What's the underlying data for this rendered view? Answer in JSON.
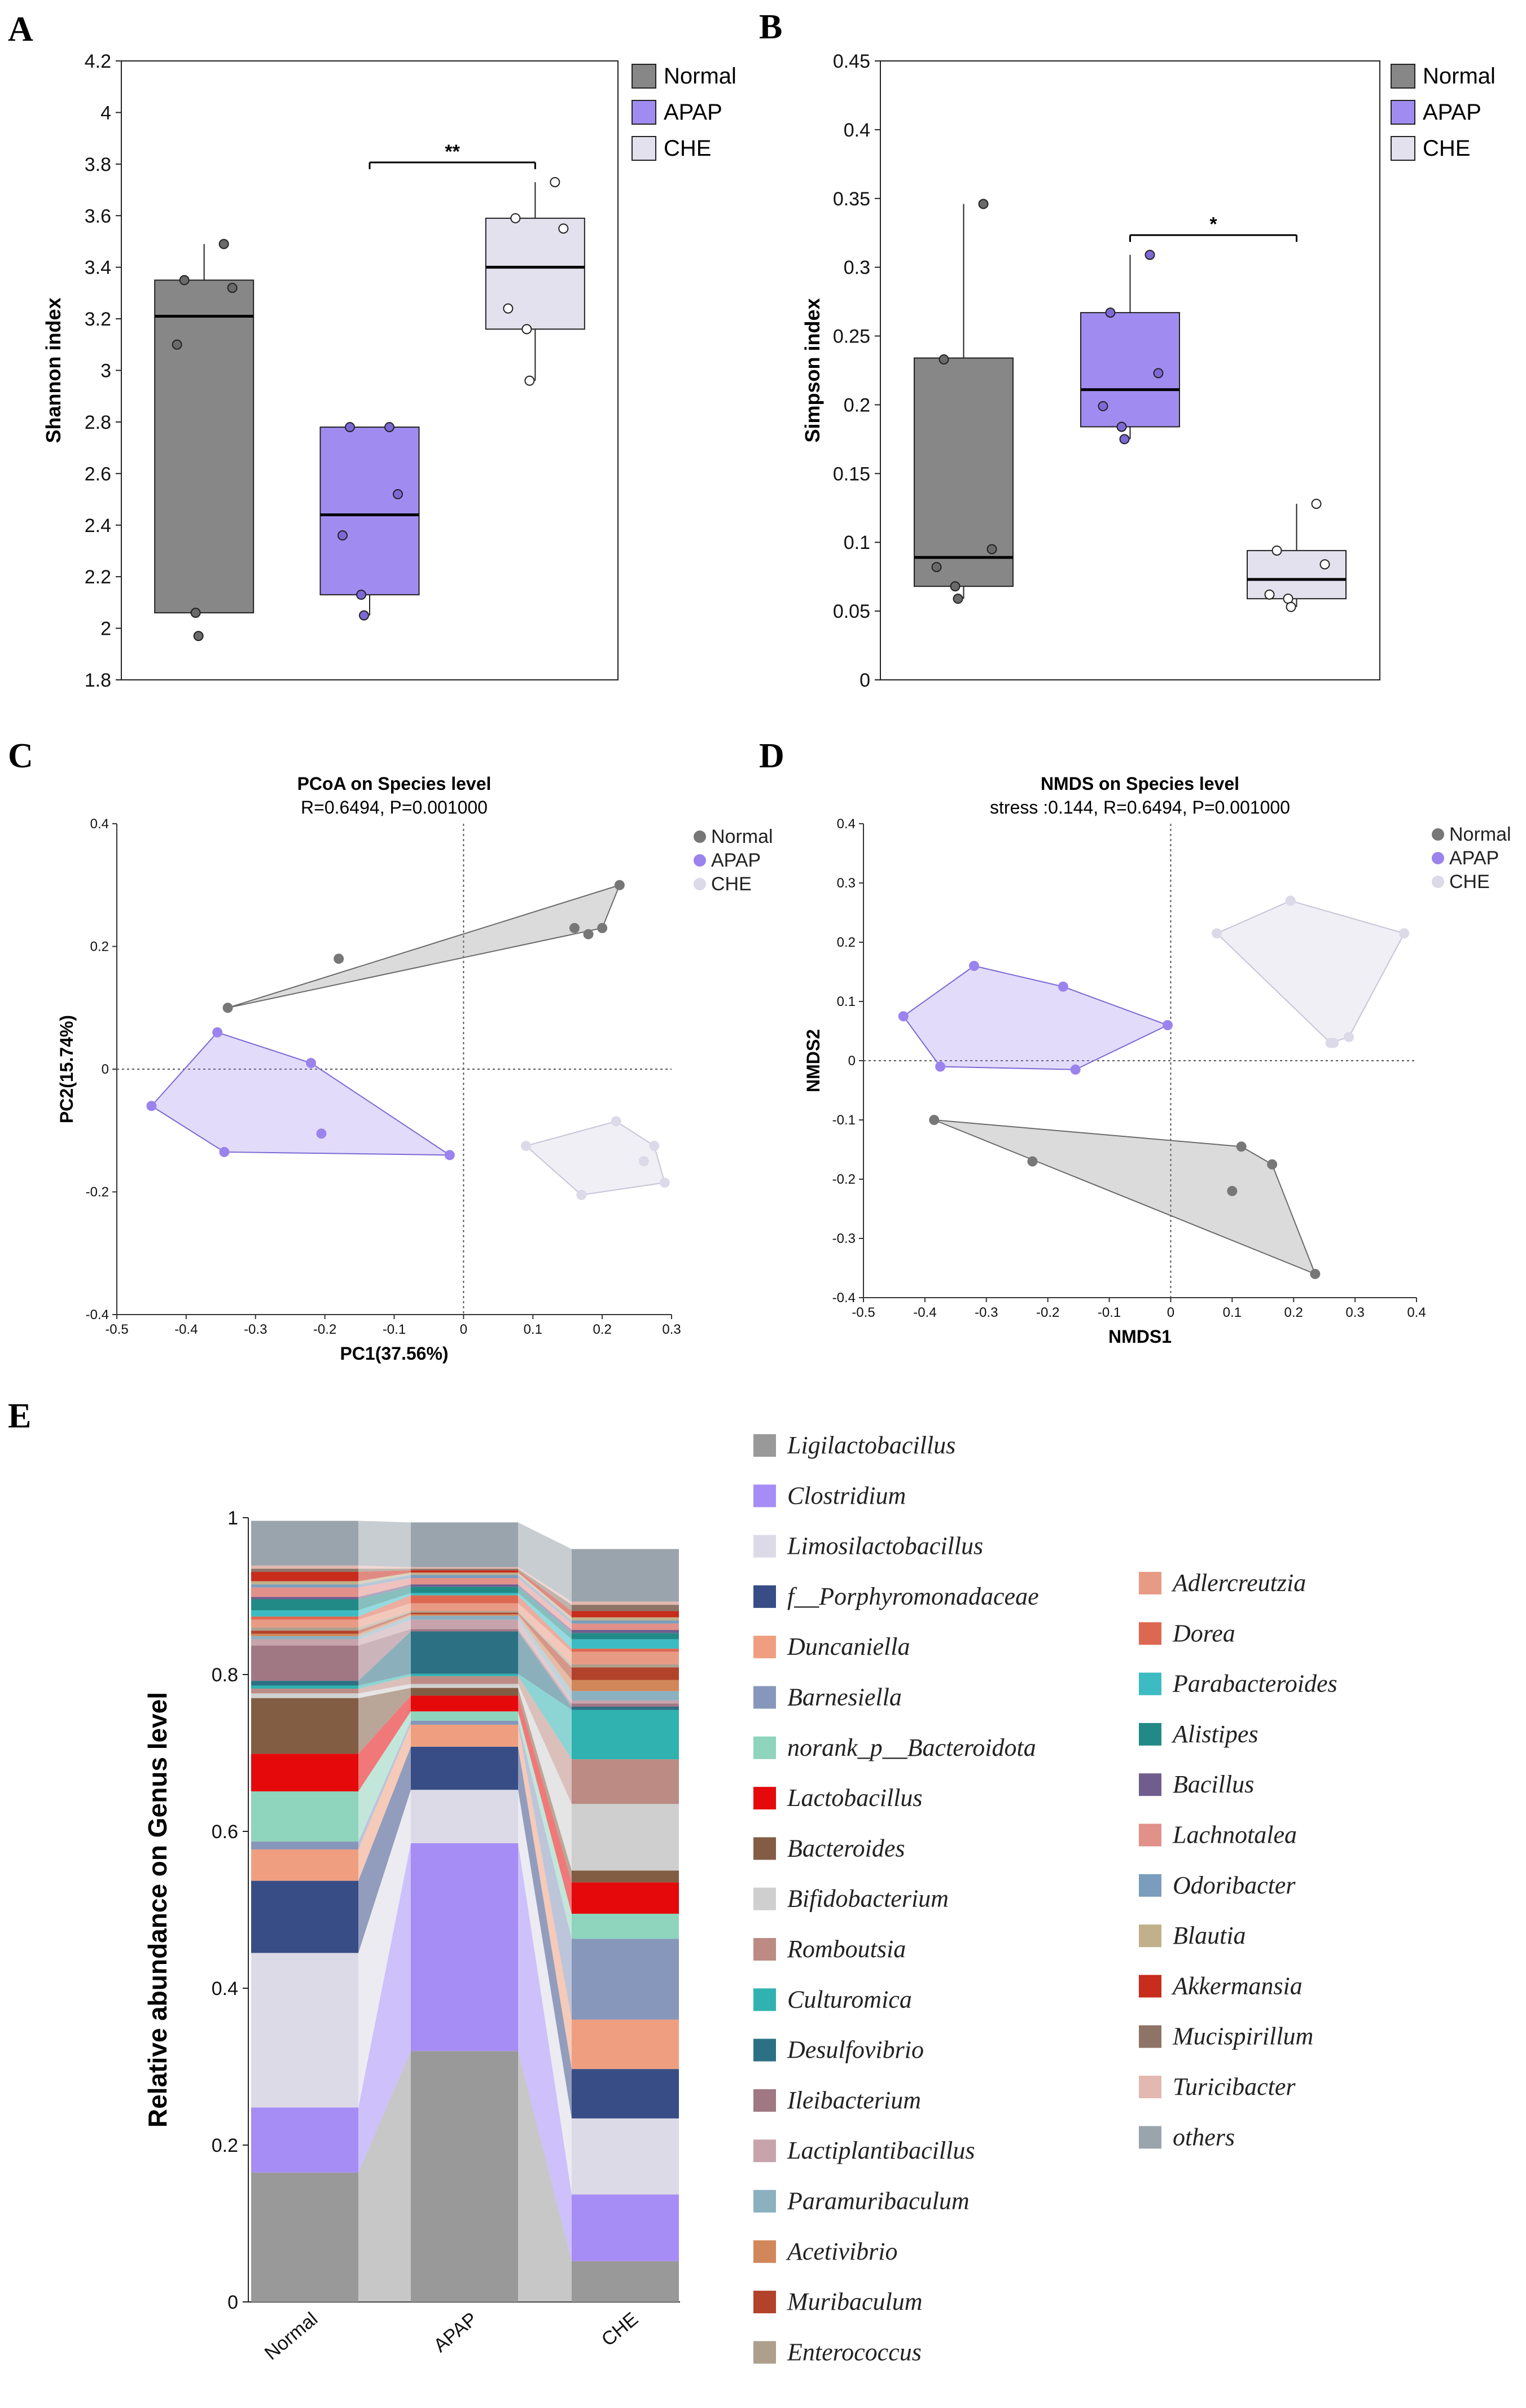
{
  "panels": {
    "a": "A",
    "b": "B",
    "c": "C",
    "d": "D",
    "e": "E"
  },
  "colors": {
    "normal": "#878787",
    "apap": "#a08cf0",
    "che": "#e3e1ee"
  },
  "chart_data": [
    {
      "panel": "A",
      "type": "boxplot",
      "ylabel": "Shannon index",
      "ylim": [
        1.8,
        4.2
      ],
      "yticks": [
        "1.8",
        "2",
        "2.2",
        "2.4",
        "2.6",
        "2.8",
        "3",
        "3.2",
        "3.4",
        "3.6",
        "3.8",
        "4",
        "4.2"
      ],
      "legend": [
        "Normal",
        "APAP",
        "CHE"
      ],
      "groups": [
        {
          "name": "Normal",
          "q1": 2.06,
          "median": 3.21,
          "q3": 3.35,
          "whisker_low": 2.06,
          "whisker_high": 3.49,
          "points": [
            3.49,
            3.35,
            3.32,
            3.1,
            2.06,
            1.97
          ]
        },
        {
          "name": "APAP",
          "q1": 2.13,
          "median": 2.44,
          "q3": 2.78,
          "whisker_low": 2.05,
          "whisker_high": 2.78,
          "points": [
            2.78,
            2.78,
            2.52,
            2.36,
            2.13,
            2.05
          ]
        },
        {
          "name": "CHE",
          "q1": 3.16,
          "median": 3.4,
          "q3": 3.59,
          "whisker_low": 2.96,
          "whisker_high": 3.73,
          "points": [
            3.73,
            3.59,
            3.55,
            3.24,
            3.16,
            2.96
          ]
        }
      ],
      "significance": {
        "from": "APAP",
        "to": "CHE",
        "label": "**"
      }
    },
    {
      "panel": "B",
      "type": "boxplot",
      "ylabel": "Simpson index",
      "ylim": [
        0,
        0.45
      ],
      "yticks": [
        "0",
        "0.05",
        "0.1",
        "0.15",
        "0.2",
        "0.25",
        "0.3",
        "0.35",
        "0.4",
        "0.45"
      ],
      "legend": [
        "Normal",
        "APAP",
        "CHE"
      ],
      "groups": [
        {
          "name": "Normal",
          "q1": 0.068,
          "median": 0.089,
          "q3": 0.234,
          "whisker_low": 0.059,
          "whisker_high": 0.346,
          "points": [
            0.346,
            0.233,
            0.095,
            0.082,
            0.068,
            0.059
          ]
        },
        {
          "name": "APAP",
          "q1": 0.184,
          "median": 0.211,
          "q3": 0.267,
          "whisker_low": 0.175,
          "whisker_high": 0.309,
          "points": [
            0.309,
            0.267,
            0.223,
            0.199,
            0.184,
            0.175
          ]
        },
        {
          "name": "CHE",
          "q1": 0.059,
          "median": 0.073,
          "q3": 0.094,
          "whisker_low": 0.053,
          "whisker_high": 0.128,
          "points": [
            0.128,
            0.094,
            0.084,
            0.062,
            0.059,
            0.053
          ]
        }
      ],
      "significance": {
        "from": "APAP",
        "to": "CHE",
        "label": "*"
      }
    },
    {
      "panel": "C",
      "type": "scatter",
      "title": "PCoA on Species level",
      "subtitle": "R=0.6494, P=0.001000",
      "xlabel": "PC1(37.56%)",
      "ylabel": "PC2(15.74%)",
      "xlim": [
        -0.5,
        0.3
      ],
      "ylim": [
        -0.4,
        0.4
      ],
      "xticks": [
        "-0.5",
        "-0.4",
        "-0.3",
        "-0.2",
        "-0.1",
        "0",
        "0.1",
        "0.2",
        "0.3"
      ],
      "yticks": [
        "-0.4",
        "-0.2",
        "0",
        "0.2",
        "0.4"
      ],
      "legend": [
        "Normal",
        "APAP",
        "CHE"
      ],
      "series": [
        {
          "name": "Normal",
          "points": [
            [
              -0.34,
              0.1
            ],
            [
              -0.18,
              0.18
            ],
            [
              0.16,
              0.23
            ],
            [
              0.18,
              0.22
            ],
            [
              0.2,
              0.23
            ],
            [
              0.225,
              0.3
            ]
          ],
          "hull": [
            [
              -0.34,
              0.1
            ],
            [
              0.225,
              0.3
            ],
            [
              0.2,
              0.23
            ]
          ]
        },
        {
          "name": "APAP",
          "points": [
            [
              -0.45,
              -0.06
            ],
            [
              -0.355,
              0.06
            ],
            [
              -0.345,
              -0.135
            ],
            [
              -0.22,
              0.01
            ],
            [
              -0.205,
              -0.105
            ],
            [
              -0.02,
              -0.14
            ]
          ],
          "hull": [
            [
              -0.45,
              -0.06
            ],
            [
              -0.355,
              0.06
            ],
            [
              -0.22,
              0.01
            ],
            [
              -0.02,
              -0.14
            ],
            [
              -0.345,
              -0.135
            ]
          ]
        },
        {
          "name": "CHE",
          "points": [
            [
              0.09,
              -0.125
            ],
            [
              0.17,
              -0.205
            ],
            [
              0.22,
              -0.085
            ],
            [
              0.26,
              -0.15
            ],
            [
              0.275,
              -0.125
            ],
            [
              0.29,
              -0.185
            ]
          ],
          "hull": [
            [
              0.09,
              -0.125
            ],
            [
              0.22,
              -0.085
            ],
            [
              0.275,
              -0.125
            ],
            [
              0.29,
              -0.185
            ],
            [
              0.17,
              -0.205
            ]
          ]
        }
      ]
    },
    {
      "panel": "D",
      "type": "scatter",
      "title": "NMDS on Species level",
      "subtitle": "stress :0.144, R=0.6494, P=0.001000",
      "xlabel": "NMDS1",
      "ylabel": "NMDS2",
      "xlim": [
        -0.5,
        0.4
      ],
      "ylim": [
        -0.4,
        0.4
      ],
      "xticks": [
        "-0.5",
        "-0.4",
        "-0.3",
        "-0.2",
        "-0.1",
        "0",
        "0.1",
        "0.2",
        "0.3",
        "0.4"
      ],
      "yticks": [
        "-0.4",
        "-0.3",
        "-0.2",
        "-0.1",
        "0",
        "0.1",
        "0.2",
        "0.3",
        "0.4"
      ],
      "legend": [
        "Normal",
        "APAP",
        "CHE"
      ],
      "series": [
        {
          "name": "Normal",
          "points": [
            [
              -0.385,
              -0.1
            ],
            [
              -0.225,
              -0.17
            ],
            [
              0.1,
              -0.22
            ],
            [
              0.115,
              -0.145
            ],
            [
              0.165,
              -0.175
            ],
            [
              0.235,
              -0.36
            ]
          ],
          "hull": [
            [
              -0.385,
              -0.1
            ],
            [
              0.115,
              -0.145
            ],
            [
              0.165,
              -0.175
            ],
            [
              0.235,
              -0.36
            ]
          ]
        },
        {
          "name": "APAP",
          "points": [
            [
              -0.435,
              0.075
            ],
            [
              -0.32,
              0.16
            ],
            [
              -0.175,
              0.125
            ],
            [
              -0.005,
              0.06
            ],
            [
              -0.375,
              -0.01
            ],
            [
              -0.155,
              -0.015
            ]
          ],
          "hull": [
            [
              -0.435,
              0.075
            ],
            [
              -0.32,
              0.16
            ],
            [
              -0.175,
              0.125
            ],
            [
              -0.005,
              0.06
            ],
            [
              -0.155,
              -0.015
            ],
            [
              -0.375,
              -0.01
            ]
          ]
        },
        {
          "name": "CHE",
          "points": [
            [
              0.075,
              0.215
            ],
            [
              0.195,
              0.27
            ],
            [
              0.38,
              0.215
            ],
            [
              0.29,
              0.04
            ],
            [
              0.265,
              0.03
            ],
            [
              0.26,
              0.03
            ]
          ],
          "hull": [
            [
              0.075,
              0.215
            ],
            [
              0.195,
              0.27
            ],
            [
              0.38,
              0.215
            ],
            [
              0.29,
              0.04
            ],
            [
              0.26,
              0.03
            ]
          ]
        }
      ]
    },
    {
      "panel": "E",
      "type": "stacked_bar",
      "ylabel": "Relative abundance on Genus level",
      "ylim": [
        0,
        1
      ],
      "yticks": [
        "0",
        "0.2",
        "0.4",
        "0.6",
        "0.8",
        "1"
      ],
      "categories": [
        "Normal",
        "APAP",
        "CHE"
      ],
      "series": [
        {
          "name": "Ligilactobacillus",
          "italic": true,
          "color": "#999999",
          "values": [
            0.165,
            0.32,
            0.052
          ]
        },
        {
          "name": "Clostridium",
          "italic": true,
          "color": "#a68df5",
          "values": [
            0.083,
            0.265,
            0.085
          ]
        },
        {
          "name": "Limosilactobacillus",
          "italic": true,
          "color": "#dddae8",
          "values": [
            0.197,
            0.068,
            0.097
          ]
        },
        {
          "name": "f__Porphyromonadaceae",
          "italic": true,
          "color": "#384d86",
          "values": [
            0.092,
            0.055,
            0.063
          ]
        },
        {
          "name": "Duncaniella",
          "italic": true,
          "color": "#ef9f80",
          "values": [
            0.04,
            0.028,
            0.063
          ]
        },
        {
          "name": "Barnesiella",
          "italic": true,
          "color": "#8796bb",
          "values": [
            0.01,
            0.005,
            0.103
          ]
        },
        {
          "name": "norank_p__Bacteroidota",
          "italic": true,
          "color": "#8fd4bc",
          "values": [
            0.064,
            0.012,
            0.032
          ]
        },
        {
          "name": "Lactobacillus",
          "italic": true,
          "color": "#e5090b",
          "values": [
            0.048,
            0.02,
            0.04
          ]
        },
        {
          "name": "Bacteroides",
          "italic": true,
          "color": "#825d44",
          "values": [
            0.071,
            0.01,
            0.015
          ]
        },
        {
          "name": "Bifidobacterium",
          "italic": true,
          "color": "#cfcfcf",
          "values": [
            0.006,
            0.005,
            0.085
          ]
        },
        {
          "name": "Romboutsia",
          "italic": true,
          "color": "#bb8b84",
          "values": [
            0.006,
            0.01,
            0.057
          ]
        },
        {
          "name": "Culturomica",
          "italic": true,
          "color": "#30b2b0",
          "values": [
            0.004,
            0.003,
            0.063
          ]
        },
        {
          "name": "Desulfovibrio",
          "italic": true,
          "color": "#2c7084",
          "values": [
            0.006,
            0.054,
            0.004
          ]
        },
        {
          "name": "Ileibacterium",
          "italic": true,
          "color": "#a07884",
          "values": [
            0.045,
            0.003,
            0.004
          ]
        },
        {
          "name": "Lactiplantibacillus",
          "italic": true,
          "color": "#c7a3ac",
          "values": [
            0.008,
            0.012,
            0.004
          ]
        },
        {
          "name": "Paramuribaculum",
          "italic": true,
          "color": "#8bb0c0",
          "values": [
            0.004,
            0.005,
            0.012
          ]
        },
        {
          "name": "Acetivibrio",
          "italic": true,
          "color": "#d2875a",
          "values": [
            0.003,
            0.002,
            0.014
          ]
        },
        {
          "name": "Muribaculum",
          "italic": true,
          "color": "#b2422a",
          "values": [
            0.004,
            0.002,
            0.016
          ]
        },
        {
          "name": "Enterococcus",
          "italic": true,
          "color": "#ae9f8d",
          "values": [
            0.004,
            0.002,
            0.004
          ]
        },
        {
          "name": "Adlercreutzia",
          "italic": true,
          "color": "#e89b84",
          "values": [
            0.01,
            0.01,
            0.016
          ]
        },
        {
          "name": "Dorea",
          "italic": true,
          "color": "#dd6851",
          "values": [
            0.004,
            0.01,
            0.004
          ]
        },
        {
          "name": "Parabacteroides",
          "italic": true,
          "color": "#3cbcc2",
          "values": [
            0.008,
            0.003,
            0.012
          ]
        },
        {
          "name": "Alistipes",
          "italic": true,
          "color": "#228a86",
          "values": [
            0.014,
            0.008,
            0.008
          ]
        },
        {
          "name": "Bacillus",
          "italic": true,
          "color": "#6f5d8e",
          "values": [
            0.003,
            0.003,
            0.004
          ]
        },
        {
          "name": "Lachnotalea",
          "italic": true,
          "color": "#e2908a",
          "values": [
            0.012,
            0.008,
            0.008
          ]
        },
        {
          "name": "Odoribacter",
          "italic": true,
          "color": "#7b9dbd",
          "values": [
            0.004,
            0.004,
            0.004
          ]
        },
        {
          "name": "Blautia",
          "italic": true,
          "color": "#c0b18b",
          "values": [
            0.004,
            0.003,
            0.004
          ]
        },
        {
          "name": "Akkermansia",
          "italic": true,
          "color": "#c72c1c",
          "values": [
            0.012,
            0.003,
            0.008
          ]
        },
        {
          "name": "Mucispirillum",
          "italic": true,
          "color": "#8d7466",
          "values": [
            0.004,
            0.002,
            0.008
          ]
        },
        {
          "name": "Turicibacter",
          "italic": true,
          "color": "#e3b8b0",
          "values": [
            0.004,
            0.002,
            0.004
          ]
        },
        {
          "name": "others",
          "italic": true,
          "color": "#9aa4ac",
          "values": [
            0.057,
            0.057,
            0.067
          ]
        }
      ]
    }
  ]
}
